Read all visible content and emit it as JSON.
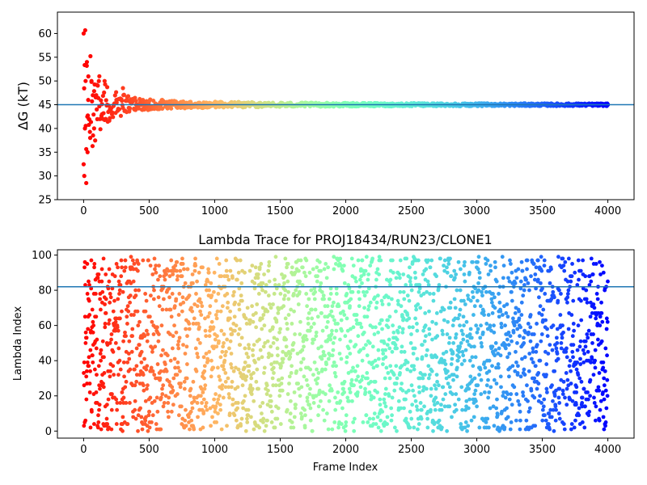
{
  "chart_data": [
    {
      "type": "scatter",
      "title": "",
      "xlabel": "",
      "ylabel": "ΔG (kT)",
      "xlim": [
        -200,
        4200
      ],
      "ylim": [
        25,
        64.5
      ],
      "xticks": [
        "0",
        "500",
        "1000",
        "1500",
        "2000",
        "2500",
        "3000",
        "3500",
        "4000"
      ],
      "yticks": [
        "25",
        "30",
        "35",
        "40",
        "45",
        "50",
        "55",
        "60"
      ],
      "hline": 45,
      "hline_color": "#1f77b4",
      "colormap": "rainbow (red at frame 0 to purple at frame 4000)",
      "grid": false,
      "series": [
        {
          "x": [
            0,
            5,
            10,
            15,
            20,
            25,
            30,
            35,
            40,
            50,
            60,
            70,
            80,
            100,
            120,
            140,
            160,
            180,
            200,
            250,
            300,
            350,
            400,
            500,
            600,
            700,
            800,
            1000,
            1200,
            1500,
            2000,
            2500,
            3000,
            3500,
            4000
          ],
          "y": [
            60,
            30,
            40,
            50,
            28.5,
            54,
            35,
            46,
            42,
            38,
            50,
            47,
            40,
            44,
            51,
            43,
            50,
            45,
            44,
            46,
            48.5,
            44,
            45,
            44,
            46,
            45.5,
            44.5,
            45.5,
            45,
            45.2,
            45.1,
            45.3,
            45,
            45,
            45
          ]
        }
      ]
    },
    {
      "type": "scatter",
      "title": "Lambda Trace for PROJ18434/RUN23/CLONE1",
      "xlabel": "Frame Index",
      "ylabel": "Lambda Index",
      "xlim": [
        -200,
        4200
      ],
      "ylim": [
        -4,
        103
      ],
      "xticks": [
        "0",
        "500",
        "1000",
        "1500",
        "2000",
        "2500",
        "3000",
        "3500",
        "4000"
      ],
      "yticks": [
        "0",
        "20",
        "40",
        "60",
        "80",
        "100"
      ],
      "hline": 82,
      "hline_color": "#1f77b4",
      "colormap": "rainbow (red at frame 0 to purple at frame 4000)",
      "grid": false,
      "frames": [
        0,
        4000
      ],
      "lambda_range": [
        0,
        99
      ]
    }
  ]
}
